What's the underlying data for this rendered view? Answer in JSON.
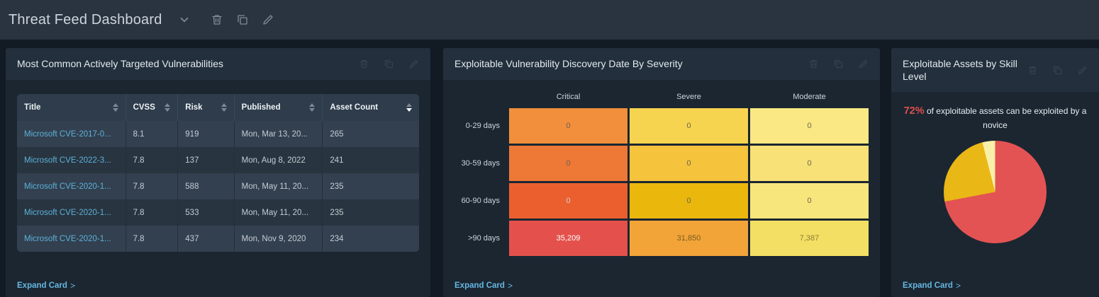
{
  "topbar": {
    "title": "Threat Feed Dashboard",
    "icons": [
      "chevron-down",
      "delete",
      "duplicate",
      "edit"
    ]
  },
  "expand_chevron": ">",
  "card_header_icons": [
    "delete",
    "duplicate",
    "edit"
  ],
  "cards": {
    "vulns": {
      "title": "Most Common Actively Targeted Vulnerabilities",
      "expand_label": "Expand Card",
      "table": {
        "columns": [
          "Title",
          "CVSS",
          "Risk",
          "Published",
          "Asset Count"
        ],
        "sort": {
          "column": "Asset Count",
          "direction": "desc"
        },
        "rows": [
          [
            "Microsoft CVE-2017-0...",
            "8.1",
            "919",
            "Mon, Mar 13, 20...",
            "265"
          ],
          [
            "Microsoft CVE-2022-3...",
            "7.8",
            "137",
            "Mon, Aug 8, 2022",
            "241"
          ],
          [
            "Microsoft CVE-2020-1...",
            "7.8",
            "588",
            "Mon, May 11, 20...",
            "235"
          ],
          [
            "Microsoft CVE-2020-1...",
            "7.8",
            "533",
            "Mon, May 11, 20...",
            "235"
          ],
          [
            "Microsoft CVE-2020-1...",
            "7.8",
            "437",
            "Mon, Nov 9, 2020",
            "234"
          ]
        ],
        "link_color": "#5cb1da"
      }
    },
    "heatmap": {
      "title": "Exploitable Vulnerability Discovery Date By Severity",
      "expand_label": "Expand Card"
    },
    "skill": {
      "title": "Exploitable Assets by Skill Level",
      "expand_label": "Expand Card",
      "stat_value": "72%",
      "stat_text": "of exploitable assets can be exploited by a novice",
      "stat_color": "#dd4f4b"
    }
  },
  "chart_data": [
    {
      "id": "discovery-heatmap",
      "type": "heatmap",
      "title": "Exploitable Vulnerability Discovery Date By Severity",
      "columns": [
        "Critical",
        "Severe",
        "Moderate"
      ],
      "rows": [
        "0-29 days",
        "30-59 days",
        "60-90 days",
        ">90 days"
      ],
      "values": [
        [
          0,
          0,
          0
        ],
        [
          0,
          0,
          0
        ],
        [
          0,
          0,
          0
        ],
        [
          35209,
          31850,
          7387
        ]
      ],
      "labels": [
        [
          "0",
          "0",
          "0"
        ],
        [
          "0",
          "0",
          "0"
        ],
        [
          "0",
          "0",
          "0"
        ],
        [
          "35,209",
          "31,850",
          "7,387"
        ]
      ],
      "cell_colors": [
        [
          "#f18f3c",
          "#f7d44f",
          "#f9e883"
        ],
        [
          "#ee7836",
          "#f5c33c",
          "#f8e176"
        ],
        [
          "#eb5f2f",
          "#eab70d",
          "#f7e67c"
        ],
        [
          "#e4514d",
          "#f2a438",
          "#f3df63"
        ]
      ],
      "text_colors": [
        [
          "#6d6052",
          "#6d6550",
          "#6d6550"
        ],
        [
          "#6d6052",
          "#6d6550",
          "#6d6550"
        ],
        [
          "#d9d0c9",
          "#6d6550",
          "#6d6550"
        ],
        [
          "#ffffff",
          "#7c5c20",
          "#8a8136"
        ]
      ],
      "grid": false,
      "legend": "none"
    },
    {
      "id": "skill-pie",
      "type": "pie",
      "title": "Exploitable Assets by Skill Level",
      "annotation": "72% of exploitable assets can be exploited by a novice",
      "slices": [
        {
          "name": "novice",
          "value": 72,
          "color": "#e45353"
        },
        {
          "name": "unlabeled-1",
          "value": 24,
          "color": "#e9b716"
        },
        {
          "name": "unlabeled-2",
          "value": 4,
          "color": "#f8f0a8"
        }
      ],
      "legend": "none"
    }
  ]
}
